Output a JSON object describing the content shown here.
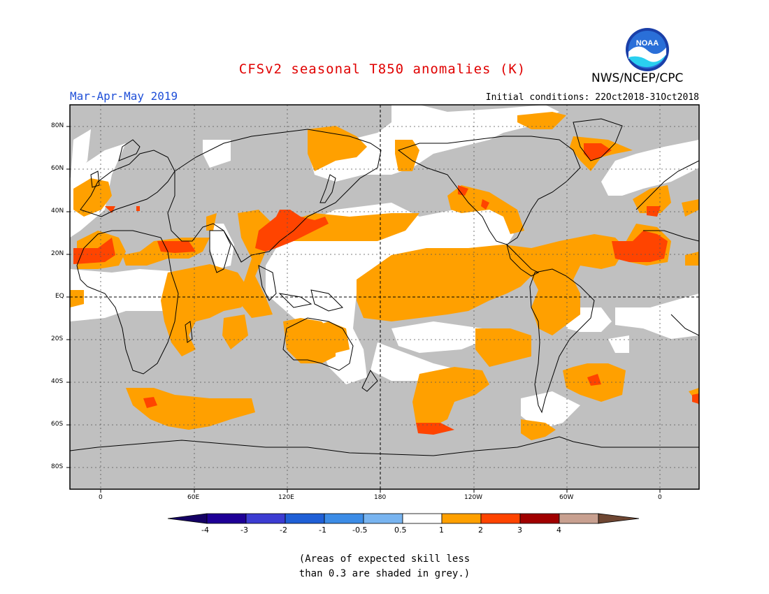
{
  "header": {
    "title": "CFSv2 seasonal T850 anomalies (K)",
    "season": "Mar-Apr-May 2019",
    "agency": "NWS/NCEP/CPC",
    "initial_conditions": "Initial conditions: 22Oct2018-31Oct2018",
    "logo_text": "NOAA"
  },
  "map": {
    "lat_labels": [
      "80N",
      "60N",
      "40N",
      "20N",
      "EQ",
      "20S",
      "40S",
      "60S",
      "80S"
    ],
    "lon_labels": [
      "0",
      "60E",
      "120E",
      "180",
      "120W",
      "60W",
      "0"
    ],
    "colors": {
      "grey_low_skill": "#c0c0c0",
      "neutral": "#ffffff",
      "orange": "#ffa000",
      "red_orange": "#ff4400",
      "dark_red": "#a00000"
    }
  },
  "colorbar": {
    "labels": [
      "-4",
      "-3",
      "-2",
      "-1",
      "-0.5",
      "0.5",
      "1",
      "2",
      "3",
      "4"
    ],
    "colors": [
      "#1e0096",
      "#3c3cd2",
      "#1f5fd6",
      "#3c8ce6",
      "#78b4f0",
      "#ffffff",
      "#ffa000",
      "#ff4400",
      "#a00000",
      "#c8a090"
    ],
    "end_colors": [
      "#140064",
      "#6e4632"
    ]
  },
  "footnote": {
    "line1": "(Areas of expected skill less",
    "line2": "than 0.3 are shaded in grey.)"
  }
}
